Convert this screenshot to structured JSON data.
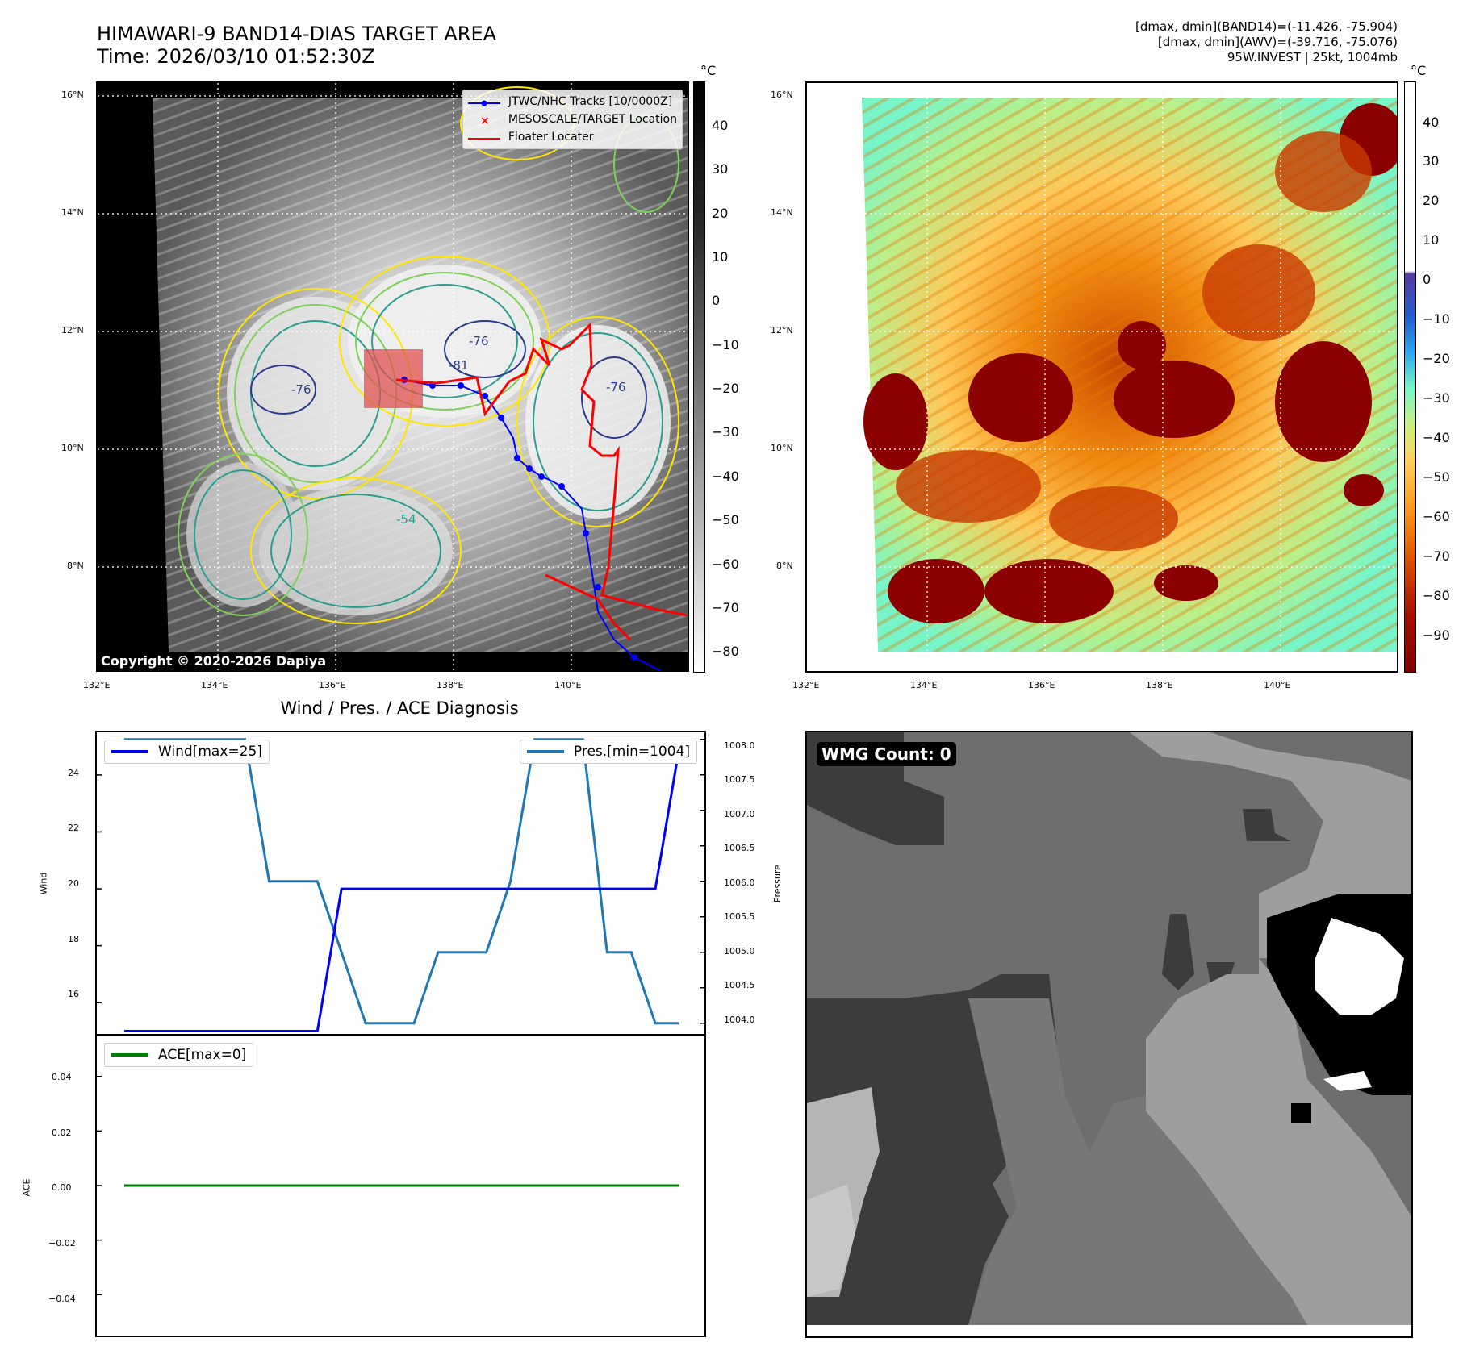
{
  "header": {
    "title_line1": "HIMAWARI-9 BAND14-DIAS TARGET AREA",
    "title_line2": "Time: 2026/03/10 01:52:30Z",
    "info_line1": "[dmax, dmin](BAND14)=(-11.426, -75.904)",
    "info_line2": "[dmax, dmin](AWV)=(-39.716, -75.076)",
    "info_line3": "95W.INVEST | 25kt, 1004mb"
  },
  "map_panels": {
    "lat_labels": [
      "16°N",
      "14°N",
      "12°N",
      "10°N",
      "8°N"
    ],
    "lon_labels": [
      "132°E",
      "134°E",
      "136°E",
      "138°E",
      "140°E"
    ],
    "copyright": "Copyright © 2020-2026 Dapiya",
    "contour_labels": [
      "-76",
      "-81",
      "-76",
      "-76",
      "-54"
    ],
    "legend": {
      "tracks": "JTWC/NHC Tracks [10/0000Z]",
      "target": "MESOSCALE/TARGET Location",
      "floater": "Floater Locater"
    },
    "track_color": "#0000ff",
    "floater_color": "#ff0000"
  },
  "colorbar_left": {
    "unit": "°C",
    "ticks": [
      "40",
      "30",
      "20",
      "10",
      "0",
      "−10",
      "−20",
      "−30",
      "−40",
      "−50",
      "−60",
      "−70",
      "−80"
    ]
  },
  "colorbar_right": {
    "unit": "°C",
    "ticks": [
      "40",
      "30",
      "20",
      "10",
      "0",
      "−10",
      "−20",
      "−30",
      "−40",
      "−50",
      "−60",
      "−70",
      "−80",
      "−90"
    ]
  },
  "diagnosis": {
    "title": "Wind / Pres. / ACE Diagnosis",
    "wind_ylabel": "Wind",
    "pres_ylabel": "Pressure",
    "ace_ylabel": "ACE",
    "wind_legend": "Wind[max=25]",
    "pres_legend": "Pres.[min=1004]",
    "ace_legend": "ACE[max=0]",
    "wind_ticks": [
      "24",
      "22",
      "20",
      "18",
      "16"
    ],
    "pres_ticks": [
      "1008.0",
      "1007.5",
      "1007.0",
      "1006.5",
      "1006.0",
      "1005.5",
      "1005.0",
      "1004.5",
      "1004.0"
    ],
    "ace_ticks": [
      "0.04",
      "0.02",
      "0.00",
      "−0.02",
      "−0.04"
    ]
  },
  "chart_data": [
    {
      "type": "line",
      "title": "Wind / Pres. / ACE Diagnosis",
      "ylabel": "Wind",
      "ylim": [
        14.9,
        25.5
      ],
      "series": [
        {
          "name": "Wind[max=25]",
          "color": "#0000ff",
          "values": [
            15,
            15,
            15,
            15,
            15,
            15,
            15,
            15,
            15,
            20,
            20,
            20,
            20,
            20,
            20,
            20,
            20,
            20,
            20,
            20,
            20,
            20,
            20,
            25
          ]
        }
      ]
    },
    {
      "type": "line",
      "ylabel": "Pressure",
      "ylim": [
        1003.85,
        1008.1
      ],
      "series": [
        {
          "name": "Pres.[min=1004]",
          "color": "#1f77b4",
          "values": [
            1008,
            1008,
            1008,
            1008,
            1008,
            1008,
            1006,
            1006,
            1006,
            1005,
            1004,
            1004,
            1004,
            1005,
            1005,
            1005,
            1006,
            1008,
            1008,
            1008,
            1005,
            1005,
            1004,
            1004
          ]
        }
      ]
    },
    {
      "type": "line",
      "ylabel": "ACE",
      "ylim": [
        -0.055,
        0.055
      ],
      "series": [
        {
          "name": "ACE[max=0]",
          "color": "#008000",
          "values": [
            0,
            0,
            0,
            0,
            0,
            0,
            0,
            0,
            0,
            0,
            0,
            0,
            0,
            0,
            0,
            0,
            0,
            0,
            0,
            0,
            0,
            0,
            0,
            0
          ]
        }
      ]
    }
  ],
  "wmg": {
    "label": "WMG Count: 0"
  }
}
